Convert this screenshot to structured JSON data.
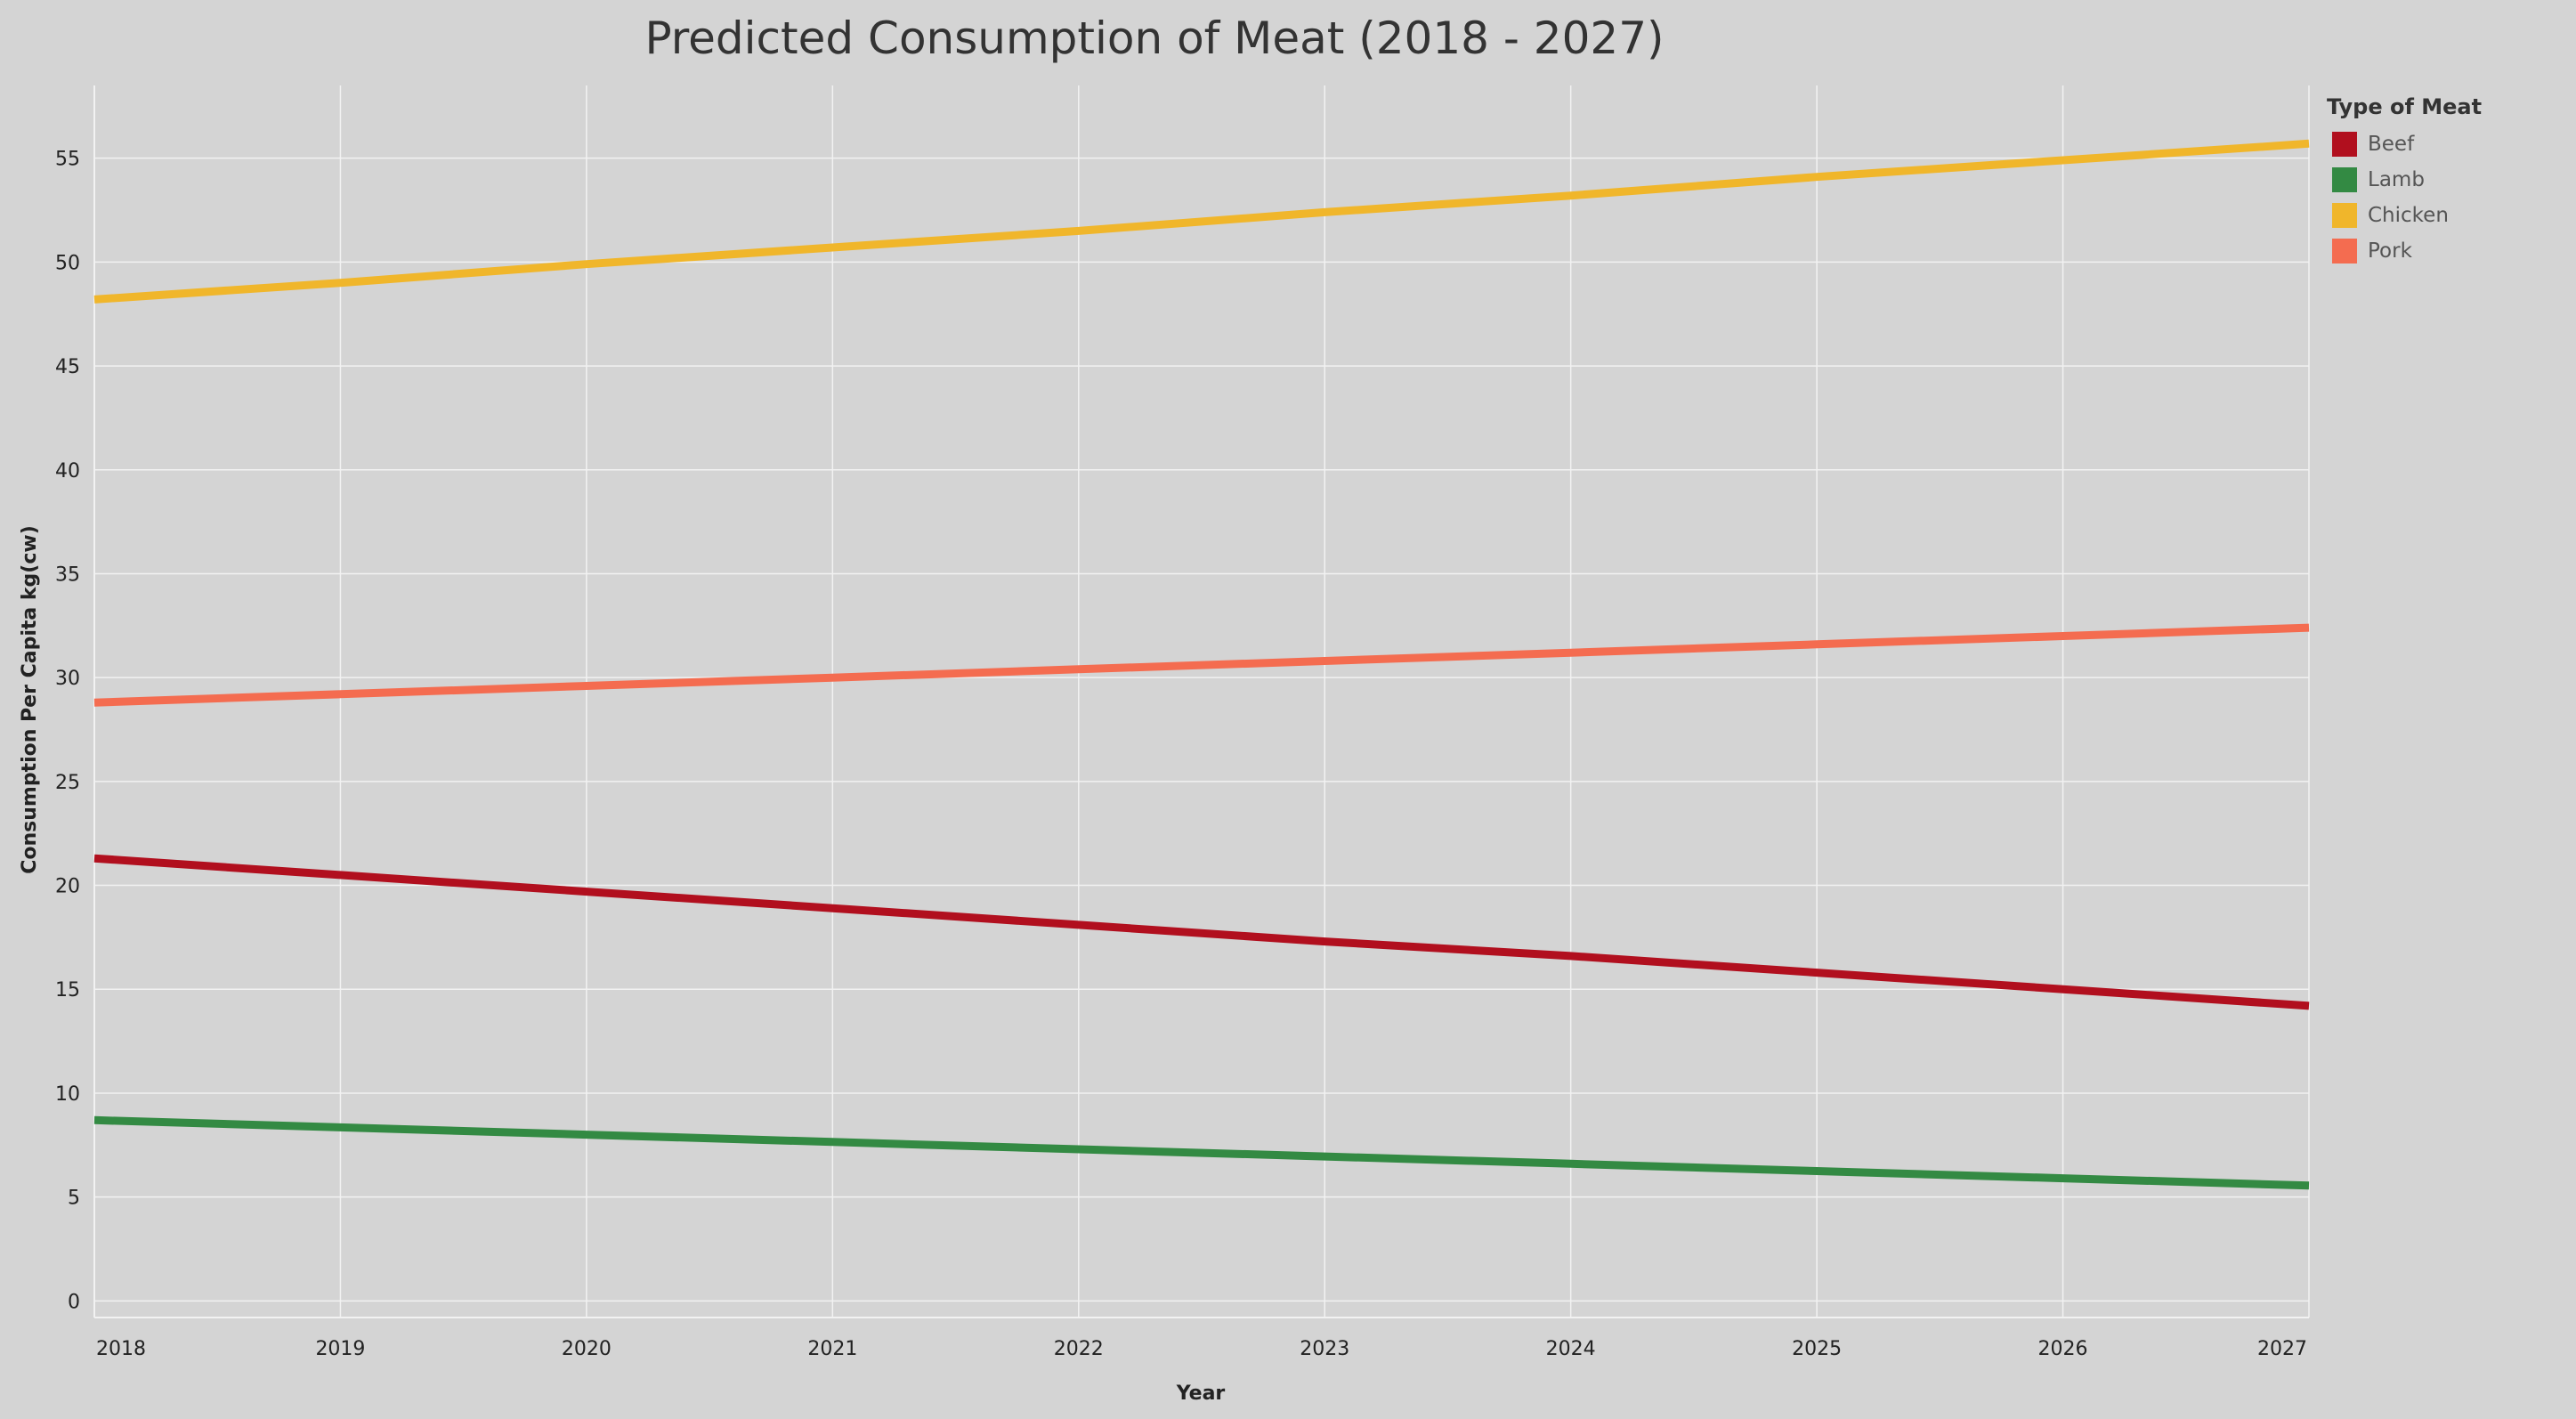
{
  "chart_data": {
    "type": "line",
    "title": "Predicted Consumption of Meat (2018 - 2027)",
    "xlabel": "Year",
    "ylabel": "Consumption Per Capita kg(cw)",
    "x": [
      2018,
      2019,
      2020,
      2021,
      2022,
      2023,
      2024,
      2025,
      2026,
      2027
    ],
    "xlim": [
      2018,
      2027
    ],
    "ylim": [
      -0.8,
      58.5
    ],
    "yticks": [
      0,
      5,
      10,
      15,
      20,
      25,
      30,
      35,
      40,
      45,
      50,
      55
    ],
    "grid": true,
    "legend": {
      "title": "Type of Meat",
      "position": "top-right"
    },
    "series": [
      {
        "name": "Beef",
        "color": "#b10f1e",
        "values": [
          21.3,
          20.5,
          19.7,
          18.9,
          18.1,
          17.3,
          16.6,
          15.8,
          15.0,
          14.2
        ]
      },
      {
        "name": "Lamb",
        "color": "#338a43",
        "values": [
          8.7,
          8.35,
          8.0,
          7.65,
          7.3,
          6.95,
          6.6,
          6.25,
          5.9,
          5.55
        ]
      },
      {
        "name": "Chicken",
        "color": "#f0b62b",
        "values": [
          48.2,
          49.0,
          49.9,
          50.7,
          51.5,
          52.4,
          53.2,
          54.1,
          54.9,
          55.7
        ]
      },
      {
        "name": "Pork",
        "color": "#f46c50",
        "values": [
          28.8,
          29.2,
          29.6,
          30.0,
          30.4,
          30.8,
          31.2,
          31.6,
          32.0,
          32.4
        ]
      }
    ]
  }
}
